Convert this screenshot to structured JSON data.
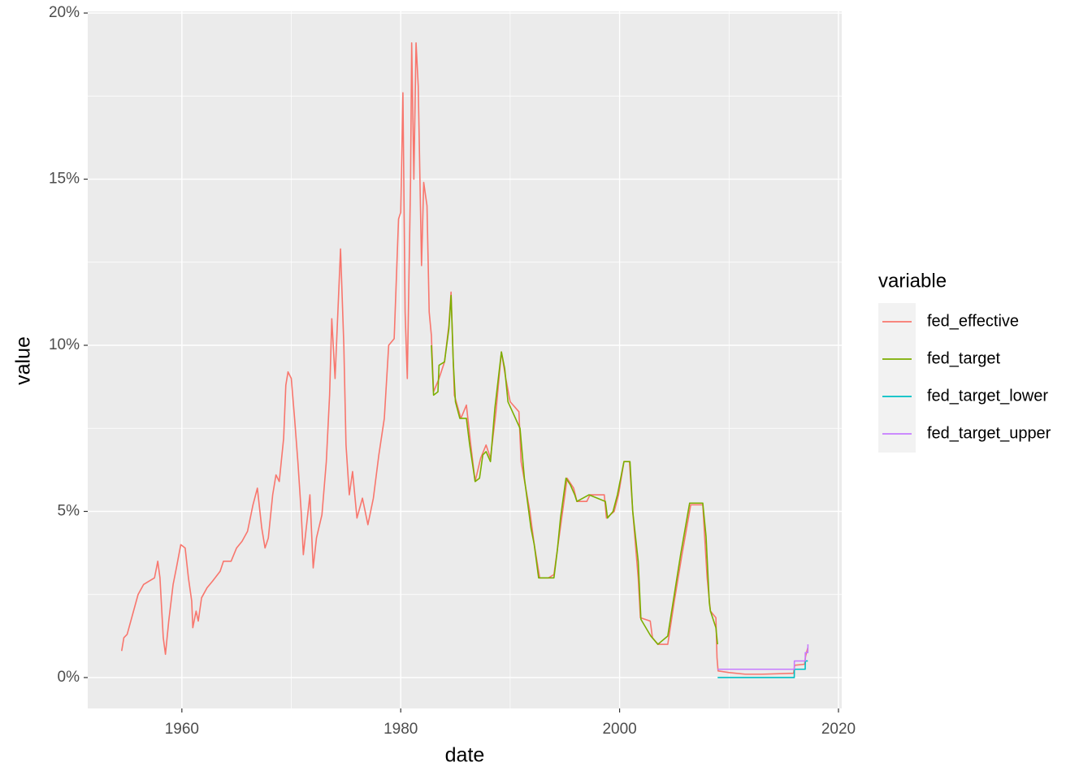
{
  "chart_data": {
    "type": "line",
    "x_label": "date",
    "y_label": "value",
    "legend_title": "variable",
    "xlim": [
      1951.4,
      2020.3
    ],
    "xticks": [
      1960,
      1980,
      2000,
      2020
    ],
    "ylim": [
      -0.93,
      20.05
    ],
    "yticks": [
      {
        "value": 0,
        "label": "0%"
      },
      {
        "value": 5,
        "label": "5%"
      },
      {
        "value": 10,
        "label": "10%"
      },
      {
        "value": 15,
        "label": "15%"
      },
      {
        "value": 20,
        "label": "20%"
      }
    ],
    "grid": true,
    "legend": "right",
    "series": [
      {
        "name": "fed_effective",
        "color": "#F8766D",
        "x": [
          1954.5,
          1954.7,
          1955.0,
          1955.5,
          1956.0,
          1956.5,
          1957.0,
          1957.5,
          1957.8,
          1958.0,
          1958.3,
          1958.5,
          1958.8,
          1959.2,
          1959.5,
          1959.9,
          1960.3,
          1960.6,
          1960.9,
          1961.0,
          1961.3,
          1961.5,
          1961.8,
          1962.3,
          1962.8,
          1963.5,
          1963.8,
          1964.5,
          1965.0,
          1965.5,
          1966.0,
          1966.5,
          1966.9,
          1967.3,
          1967.6,
          1967.9,
          1968.3,
          1968.6,
          1968.9,
          1969.3,
          1969.5,
          1969.7,
          1970.0,
          1970.3,
          1970.6,
          1970.9,
          1971.1,
          1971.4,
          1971.7,
          1972.0,
          1972.3,
          1972.8,
          1973.2,
          1973.5,
          1973.7,
          1974.0,
          1974.5,
          1974.8,
          1975.0,
          1975.3,
          1975.6,
          1976.0,
          1976.5,
          1977.0,
          1977.5,
          1978.0,
          1978.5,
          1978.9,
          1979.4,
          1979.8,
          1980.0,
          1980.2,
          1980.4,
          1980.6,
          1980.9,
          1981.0,
          1981.2,
          1981.4,
          1981.6,
          1981.9,
          1982.1,
          1982.4,
          1982.6,
          1982.8,
          1983.0,
          1983.5,
          1984.0,
          1984.4,
          1984.6,
          1984.9,
          1985.5,
          1986.0,
          1986.4,
          1986.8,
          1987.3,
          1987.8,
          1988.2,
          1988.7,
          1989.2,
          1989.6,
          1990.0,
          1990.8,
          1991.0,
          1991.8,
          1992.2,
          1992.7,
          1993.5,
          1994.0,
          1994.5,
          1995.0,
          1995.2,
          1995.8,
          1996.1,
          1997.0,
          1997.3,
          1998.6,
          1998.8,
          1999.5,
          1999.9,
          2000.4,
          2000.9,
          2001.2,
          2001.7,
          2001.9,
          2002.8,
          2003.0,
          2003.5,
          2004.4,
          2005.0,
          2005.7,
          2006.5,
          2007.6,
          2008.0,
          2008.3,
          2008.8,
          2008.9,
          2009.0,
          2010.0,
          2011.5,
          2013.0,
          2015.9,
          2016.0,
          2016.9,
          2017.0,
          2017.2
        ],
        "values": [
          0.8,
          1.2,
          1.3,
          1.9,
          2.5,
          2.8,
          2.9,
          3.0,
          3.5,
          3.0,
          1.2,
          0.7,
          1.7,
          2.8,
          3.3,
          4.0,
          3.9,
          3.0,
          2.3,
          1.5,
          2.0,
          1.7,
          2.4,
          2.7,
          2.9,
          3.2,
          3.5,
          3.5,
          3.9,
          4.1,
          4.4,
          5.2,
          5.7,
          4.5,
          3.9,
          4.2,
          5.5,
          6.1,
          5.9,
          7.2,
          8.8,
          9.2,
          9.0,
          7.8,
          6.5,
          5.0,
          3.7,
          4.6,
          5.5,
          3.3,
          4.2,
          4.9,
          6.5,
          8.5,
          10.8,
          9.0,
          12.9,
          10.0,
          7.0,
          5.5,
          6.2,
          4.8,
          5.4,
          4.6,
          5.4,
          6.7,
          7.8,
          10.0,
          10.2,
          13.8,
          14.0,
          17.6,
          11.0,
          9.0,
          15.0,
          19.1,
          15.0,
          19.1,
          17.8,
          12.4,
          14.9,
          14.2,
          11.0,
          10.3,
          8.6,
          9.0,
          9.5,
          10.6,
          11.6,
          8.5,
          7.8,
          8.2,
          7.0,
          5.9,
          6.6,
          7.0,
          6.6,
          8.0,
          9.8,
          9.0,
          8.3,
          8.0,
          6.5,
          5.0,
          4.0,
          3.0,
          3.0,
          3.1,
          4.3,
          5.5,
          6.0,
          5.7,
          5.3,
          5.3,
          5.5,
          5.5,
          4.8,
          5.0,
          5.5,
          6.5,
          6.5,
          5.0,
          3.0,
          1.8,
          1.7,
          1.2,
          1.0,
          1.0,
          2.3,
          3.7,
          5.2,
          5.2,
          3.0,
          2.0,
          1.8,
          0.6,
          0.2,
          0.15,
          0.1,
          0.1,
          0.13,
          0.37,
          0.4,
          0.65,
          0.9
        ]
      },
      {
        "name": "fed_target",
        "color": "#7CAE00",
        "x": [
          1982.8,
          1983.0,
          1983.4,
          1983.5,
          1984.0,
          1984.4,
          1984.6,
          1984.8,
          1985.0,
          1985.4,
          1986.0,
          1986.3,
          1986.8,
          1987.2,
          1987.5,
          1987.8,
          1988.2,
          1988.6,
          1989.2,
          1989.5,
          1989.8,
          1990.9,
          1991.3,
          1991.9,
          1992.2,
          1992.6,
          1994.0,
          1994.3,
          1994.6,
          1995.1,
          1995.5,
          1995.9,
          1996.1,
          1997.2,
          1998.7,
          1998.9,
          1999.4,
          1999.8,
          2000.4,
          2000.95,
          2001.2,
          2001.7,
          2001.95,
          2002.85,
          2003.5,
          2004.4,
          2005.0,
          2005.6,
          2006.4,
          2007.6,
          2007.9,
          2008.2,
          2008.3,
          2008.8,
          2008.95
        ],
        "values": [
          10.0,
          8.5,
          8.6,
          9.4,
          9.5,
          10.5,
          11.5,
          9.5,
          8.3,
          7.8,
          7.8,
          7.0,
          5.9,
          6.0,
          6.7,
          6.8,
          6.5,
          8.1,
          9.8,
          9.3,
          8.3,
          7.5,
          6.0,
          4.5,
          4.0,
          3.0,
          3.0,
          3.8,
          4.8,
          6.0,
          5.8,
          5.5,
          5.3,
          5.5,
          5.3,
          4.8,
          5.0,
          5.5,
          6.5,
          6.5,
          5.0,
          3.5,
          1.75,
          1.25,
          1.0,
          1.25,
          2.5,
          3.75,
          5.25,
          5.25,
          4.25,
          2.25,
          2.0,
          1.5,
          1.0
        ]
      },
      {
        "name": "fed_target_lower",
        "color": "#00BFC4",
        "x": [
          2008.96,
          2015.96,
          2015.97,
          2016.96,
          2016.97,
          2017.2
        ],
        "values": [
          0,
          0,
          0.25,
          0.25,
          0.5,
          0.5
        ]
      },
      {
        "name": "fed_target_upper",
        "color": "#C77CFF",
        "x": [
          2008.96,
          2015.96,
          2015.97,
          2016.96,
          2016.97,
          2017.2,
          2017.21
        ],
        "values": [
          0.25,
          0.25,
          0.5,
          0.5,
          0.75,
          0.75,
          1.0
        ]
      }
    ]
  }
}
